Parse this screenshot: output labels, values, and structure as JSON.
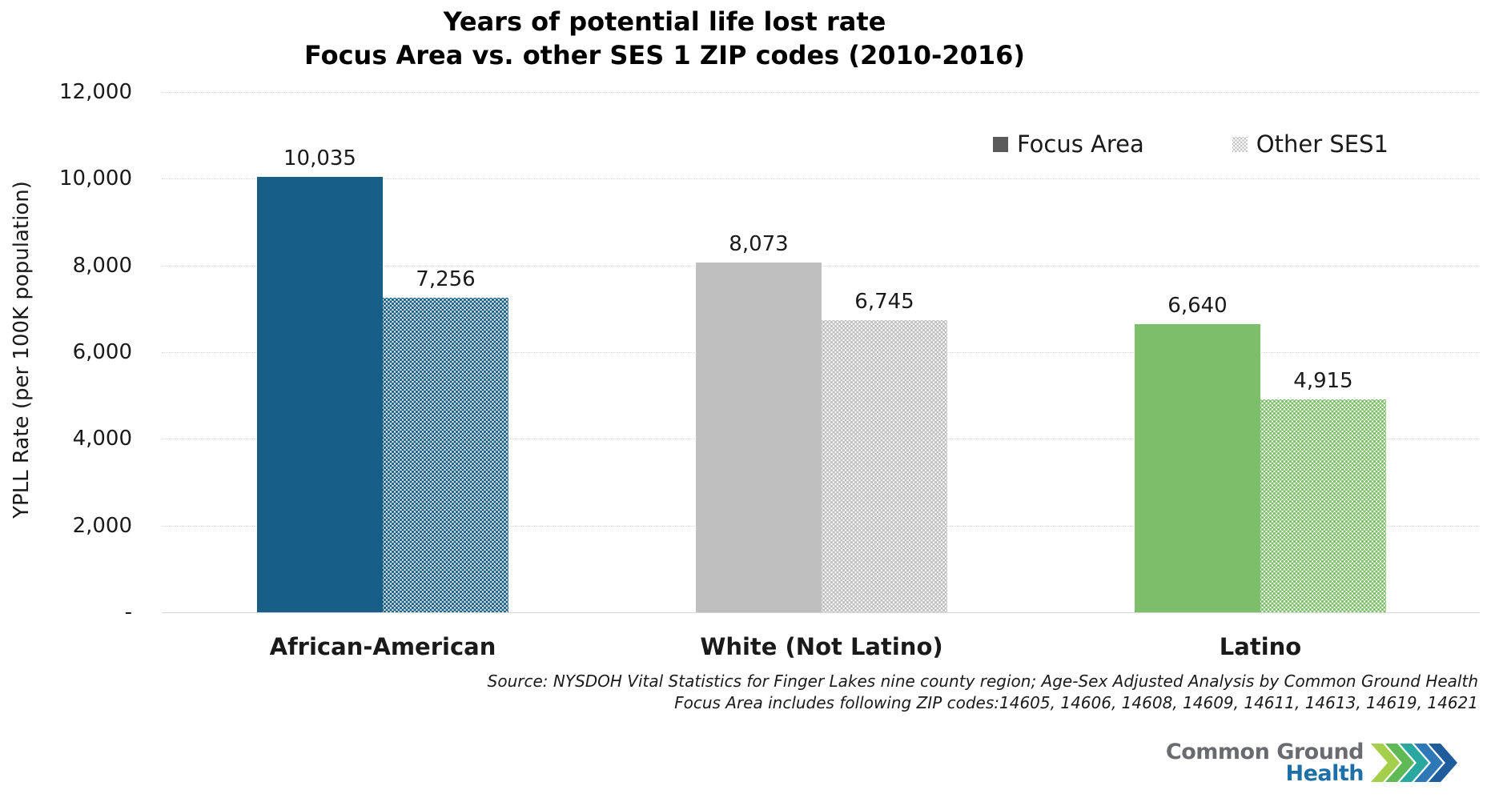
{
  "chart_data": {
    "type": "bar",
    "title": "Years of potential life lost rate Focus Area vs. other SES 1 ZIP codes (2010-2016)",
    "title_line1": "Years of potential life lost rate",
    "title_line2": "Focus Area vs. other SES 1 ZIP codes (2010-2016)",
    "ylabel": "YPLL Rate (per 100K population)",
    "xlabel": "",
    "ylim": [
      0,
      12000
    ],
    "ytick_interval": 2000,
    "ytick_labels": [
      "-",
      "2,000",
      "4,000",
      "6,000",
      "8,000",
      "10,000",
      "12,000"
    ],
    "grid": true,
    "legend_position": "top-right",
    "categories": [
      "African-American",
      "White (Not Latino)",
      "Latino"
    ],
    "series": [
      {
        "name": "Focus Area",
        "style": "solid",
        "values": [
          10035,
          8073,
          6640
        ],
        "labels": [
          "10,035",
          "8,073",
          "6,640"
        ]
      },
      {
        "name": "Other SES1",
        "style": "dotted",
        "values": [
          7256,
          6745,
          4915
        ],
        "labels": [
          "7,256",
          "6,745",
          "4,915"
        ]
      }
    ],
    "group_colors": [
      "#175f86",
      "#bfbfbf",
      "#7cbe69"
    ],
    "legend_swatch_colors": {
      "focus_area": "#5a5a5a",
      "other_ses1": "#c3c3c3"
    }
  },
  "source": {
    "line1": "Source: NYSDOH  Vital Statistics for Finger Lakes nine county region; Age-Sex Adjusted Analysis by Common Ground Health",
    "line2": "Focus Area includes following ZIP codes:14605, 14606, 14608, 14609, 14611, 14613, 14619, 14621"
  },
  "logo": {
    "line1": "Common Ground",
    "line2": "Health",
    "text_color_primary": "#6a6b6e",
    "text_color_secondary": "#1e6fa7",
    "chevron_colors": [
      "#a4ce4c",
      "#5fba55",
      "#2aa89f",
      "#2e78b7",
      "#1e5c9b"
    ]
  }
}
